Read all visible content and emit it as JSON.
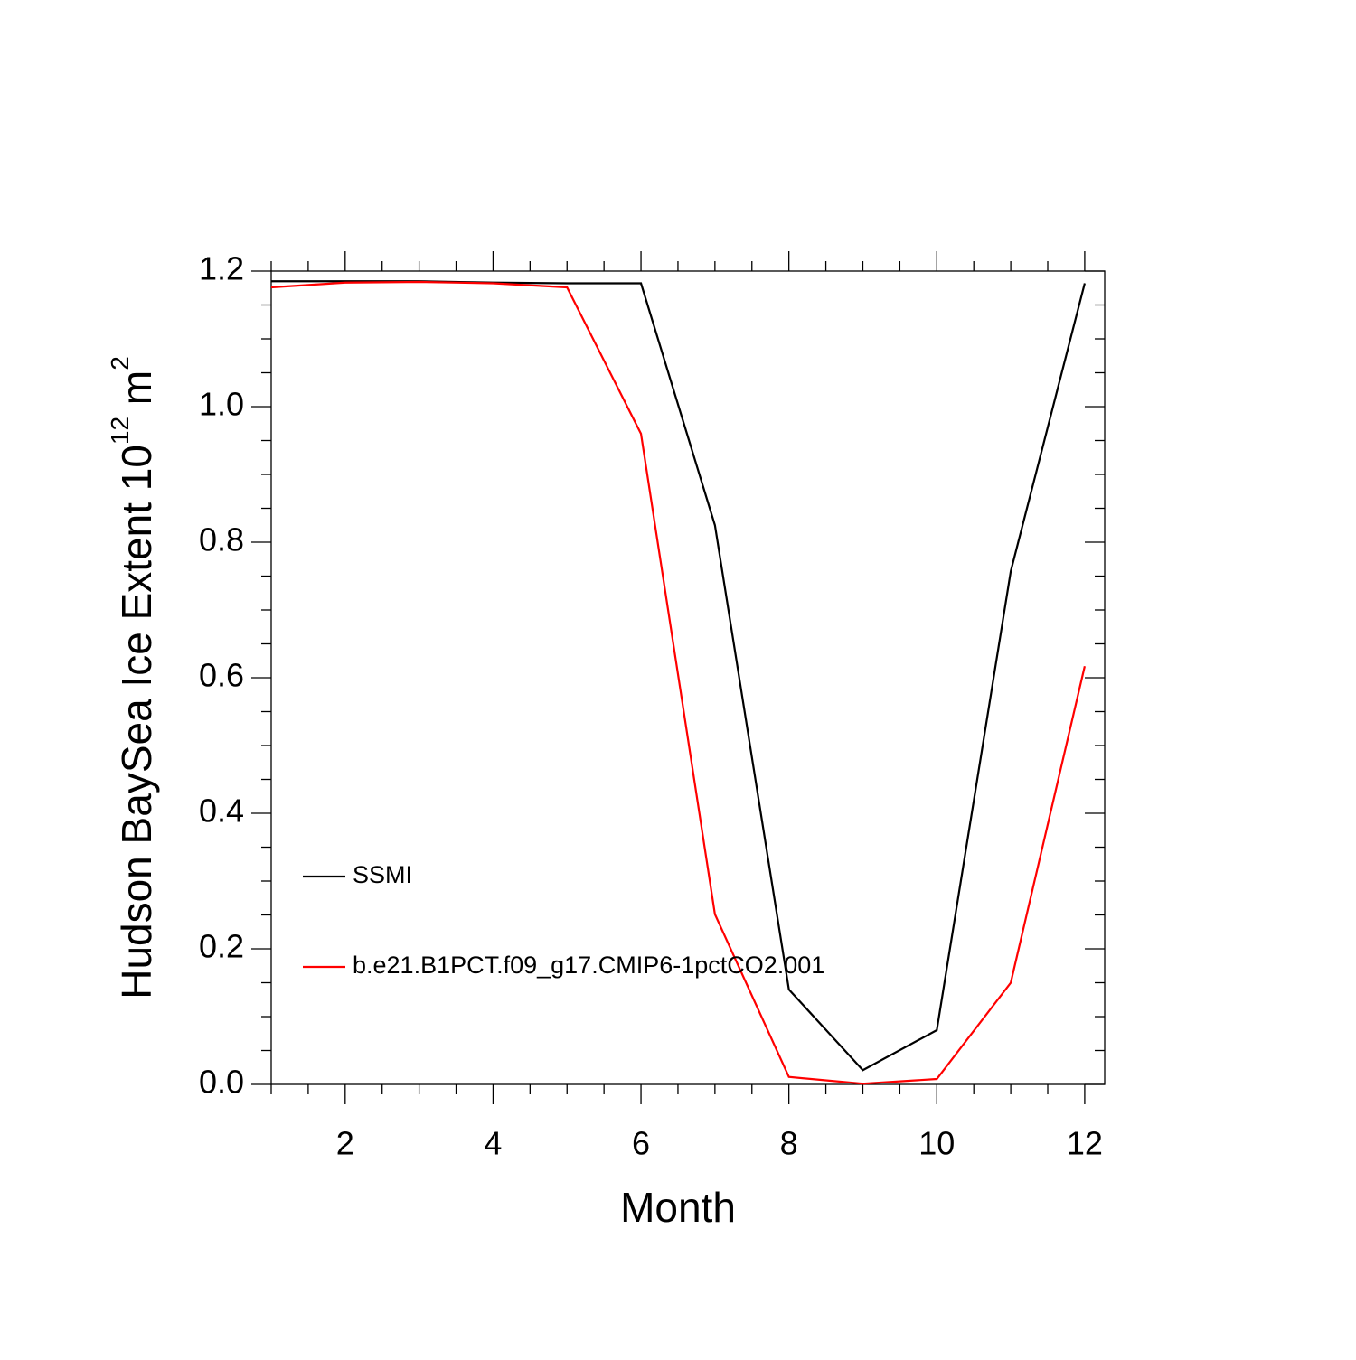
{
  "chart_data": {
    "type": "line",
    "xlabel": "Month",
    "ylabel": [
      "Hudson BaySea Ice Extent 10",
      "12",
      " m",
      "2"
    ],
    "x": [
      1,
      2,
      3,
      4,
      5,
      6,
      7,
      8,
      9,
      10,
      11,
      12
    ],
    "series": [
      {
        "name": "SSMI",
        "color": "#000000",
        "values": [
          1.185,
          1.185,
          1.185,
          1.183,
          1.182,
          1.182,
          0.825,
          0.14,
          0.021,
          0.08,
          0.757,
          1.182
        ]
      },
      {
        "name": "b.e21.B1PCT.f09_g17.CMIP6-1pctCO2.001",
        "color": "#ff0000",
        "values": [
          1.176,
          1.183,
          1.184,
          1.182,
          1.176,
          0.96,
          0.251,
          0.011,
          0.001,
          0.008,
          0.15,
          0.617
        ]
      }
    ],
    "xlim": [
      1,
      12.27
    ],
    "ylim": [
      0,
      1.2
    ],
    "xticks": [
      2,
      4,
      6,
      8,
      10,
      12
    ],
    "yticks": [
      {
        "value": 0,
        "label": "0.0"
      },
      0.2,
      0.4,
      0.6,
      0.8,
      {
        "value": 1,
        "label": "1.0"
      },
      1.2
    ],
    "xminorticks": [
      1,
      1.5,
      2.5,
      3,
      3.5,
      4.5,
      5,
      5.5,
      6.5,
      7,
      7.5,
      8.5,
      9,
      9.5,
      10.5,
      11,
      11.5
    ],
    "yminorticks": [
      0.05,
      0.1,
      0.15,
      0.25,
      0.3,
      0.35,
      0.45,
      0.5,
      0.55,
      0.65,
      0.7,
      0.75,
      0.85,
      0.9,
      0.95,
      1.05,
      1.1,
      1.15
    ],
    "legend": "lower left"
  }
}
